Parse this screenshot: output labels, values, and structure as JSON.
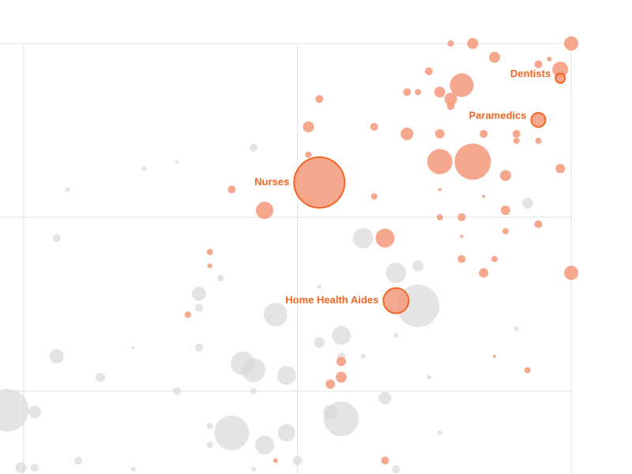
{
  "chart_data": {
    "type": "bubble",
    "xlim": [
      -8.66,
      222.2
    ],
    "ylim": [
      -47.7,
      225
    ],
    "xticks": [
      0,
      100,
      200
    ],
    "yticks": [
      0,
      100,
      200
    ],
    "grid": true,
    "series": [
      {
        "color": "#d9d9d9",
        "x": [
          84,
          44,
          56,
          16,
          184,
          12,
          124,
          144,
          136,
          72,
          108,
          64,
          64,
          92,
          144,
          116,
          108,
          180,
          136,
          12,
          40,
          64,
          80,
          84,
          124,
          116,
          96,
          28,
          84,
          56,
          148,
          132,
          -6,
          4,
          112,
          116,
          76,
          68,
          96,
          88,
          68,
          152,
          20,
          -1,
          4,
          100,
          84,
          40,
          136
        ],
        "y": [
          140,
          128,
          132,
          116,
          108,
          88,
          88,
          72,
          68,
          65,
          60,
          56,
          48,
          44,
          49,
          32,
          28,
          36,
          32,
          20,
          25,
          25,
          16,
          12,
          20,
          20,
          9,
          8,
          0,
          0,
          8,
          -4,
          -11,
          -12,
          -12,
          -16,
          -24,
          -20,
          -24,
          -31,
          -31,
          -24,
          -40,
          -44,
          -44,
          -40,
          -45,
          -45,
          -45
        ],
        "sizes": [
          5,
          3,
          2,
          3,
          7,
          5,
          13,
          7,
          13,
          4,
          3,
          9,
          5,
          15,
          27,
          12,
          7,
          3,
          3,
          9,
          2,
          5,
          15,
          15,
          3,
          5,
          12,
          6,
          4,
          5,
          3,
          8,
          27,
          8,
          9,
          22,
          22,
          4,
          11,
          12,
          4,
          3,
          5,
          7,
          5,
          6,
          3,
          3,
          5
        ]
      },
      {
        "color": "#f4997a",
        "x": [
          200,
          164,
          156,
          172,
          192,
          188,
          196,
          160,
          148,
          140,
          144,
          152,
          156,
          156,
          108,
          104,
          128,
          140,
          152,
          168,
          180,
          180,
          188,
          152,
          164,
          196,
          176,
          104,
          76,
          88,
          128,
          152,
          168,
          176,
          152,
          160,
          188,
          176,
          160,
          132,
          68,
          68,
          160,
          172,
          168,
          200,
          60,
          116,
          112,
          116,
          184,
          172,
          92,
          132
        ],
        "y": [
          200,
          200,
          200,
          192,
          191,
          188,
          185,
          176,
          184,
          172,
          172,
          172,
          168,
          164,
          168,
          152,
          152,
          148,
          148,
          148,
          148,
          144,
          144,
          132,
          132,
          128,
          124,
          136,
          116,
          104,
          112,
          116,
          112,
          104,
          100,
          100,
          96,
          92,
          89,
          88,
          80,
          72,
          76,
          76,
          68,
          68,
          44,
          17,
          4,
          8,
          12,
          20,
          -40,
          -40
        ],
        "sizes": [
          9,
          7,
          4,
          7,
          3,
          5,
          10,
          15,
          5,
          5,
          4,
          7,
          8,
          5,
          5,
          7,
          5,
          8,
          6,
          5,
          5,
          4,
          4,
          16,
          23,
          6,
          7,
          4,
          5,
          11,
          4,
          2,
          2,
          6,
          4,
          5,
          5,
          4,
          2,
          12,
          4,
          3,
          5,
          4,
          6,
          9,
          4,
          6,
          6,
          7,
          4,
          2,
          3,
          5
        ]
      }
    ],
    "labeled": {
      "color": "#f4997a",
      "outline": "#f26522",
      "labels": [
        "Dentists",
        "Paramedics",
        "Nurses",
        "Home Health Aides"
      ],
      "x": [
        196,
        188,
        108,
        136
      ],
      "y": [
        180,
        156,
        120,
        52
      ],
      "sizes": [
        6,
        9,
        32,
        16
      ]
    }
  }
}
